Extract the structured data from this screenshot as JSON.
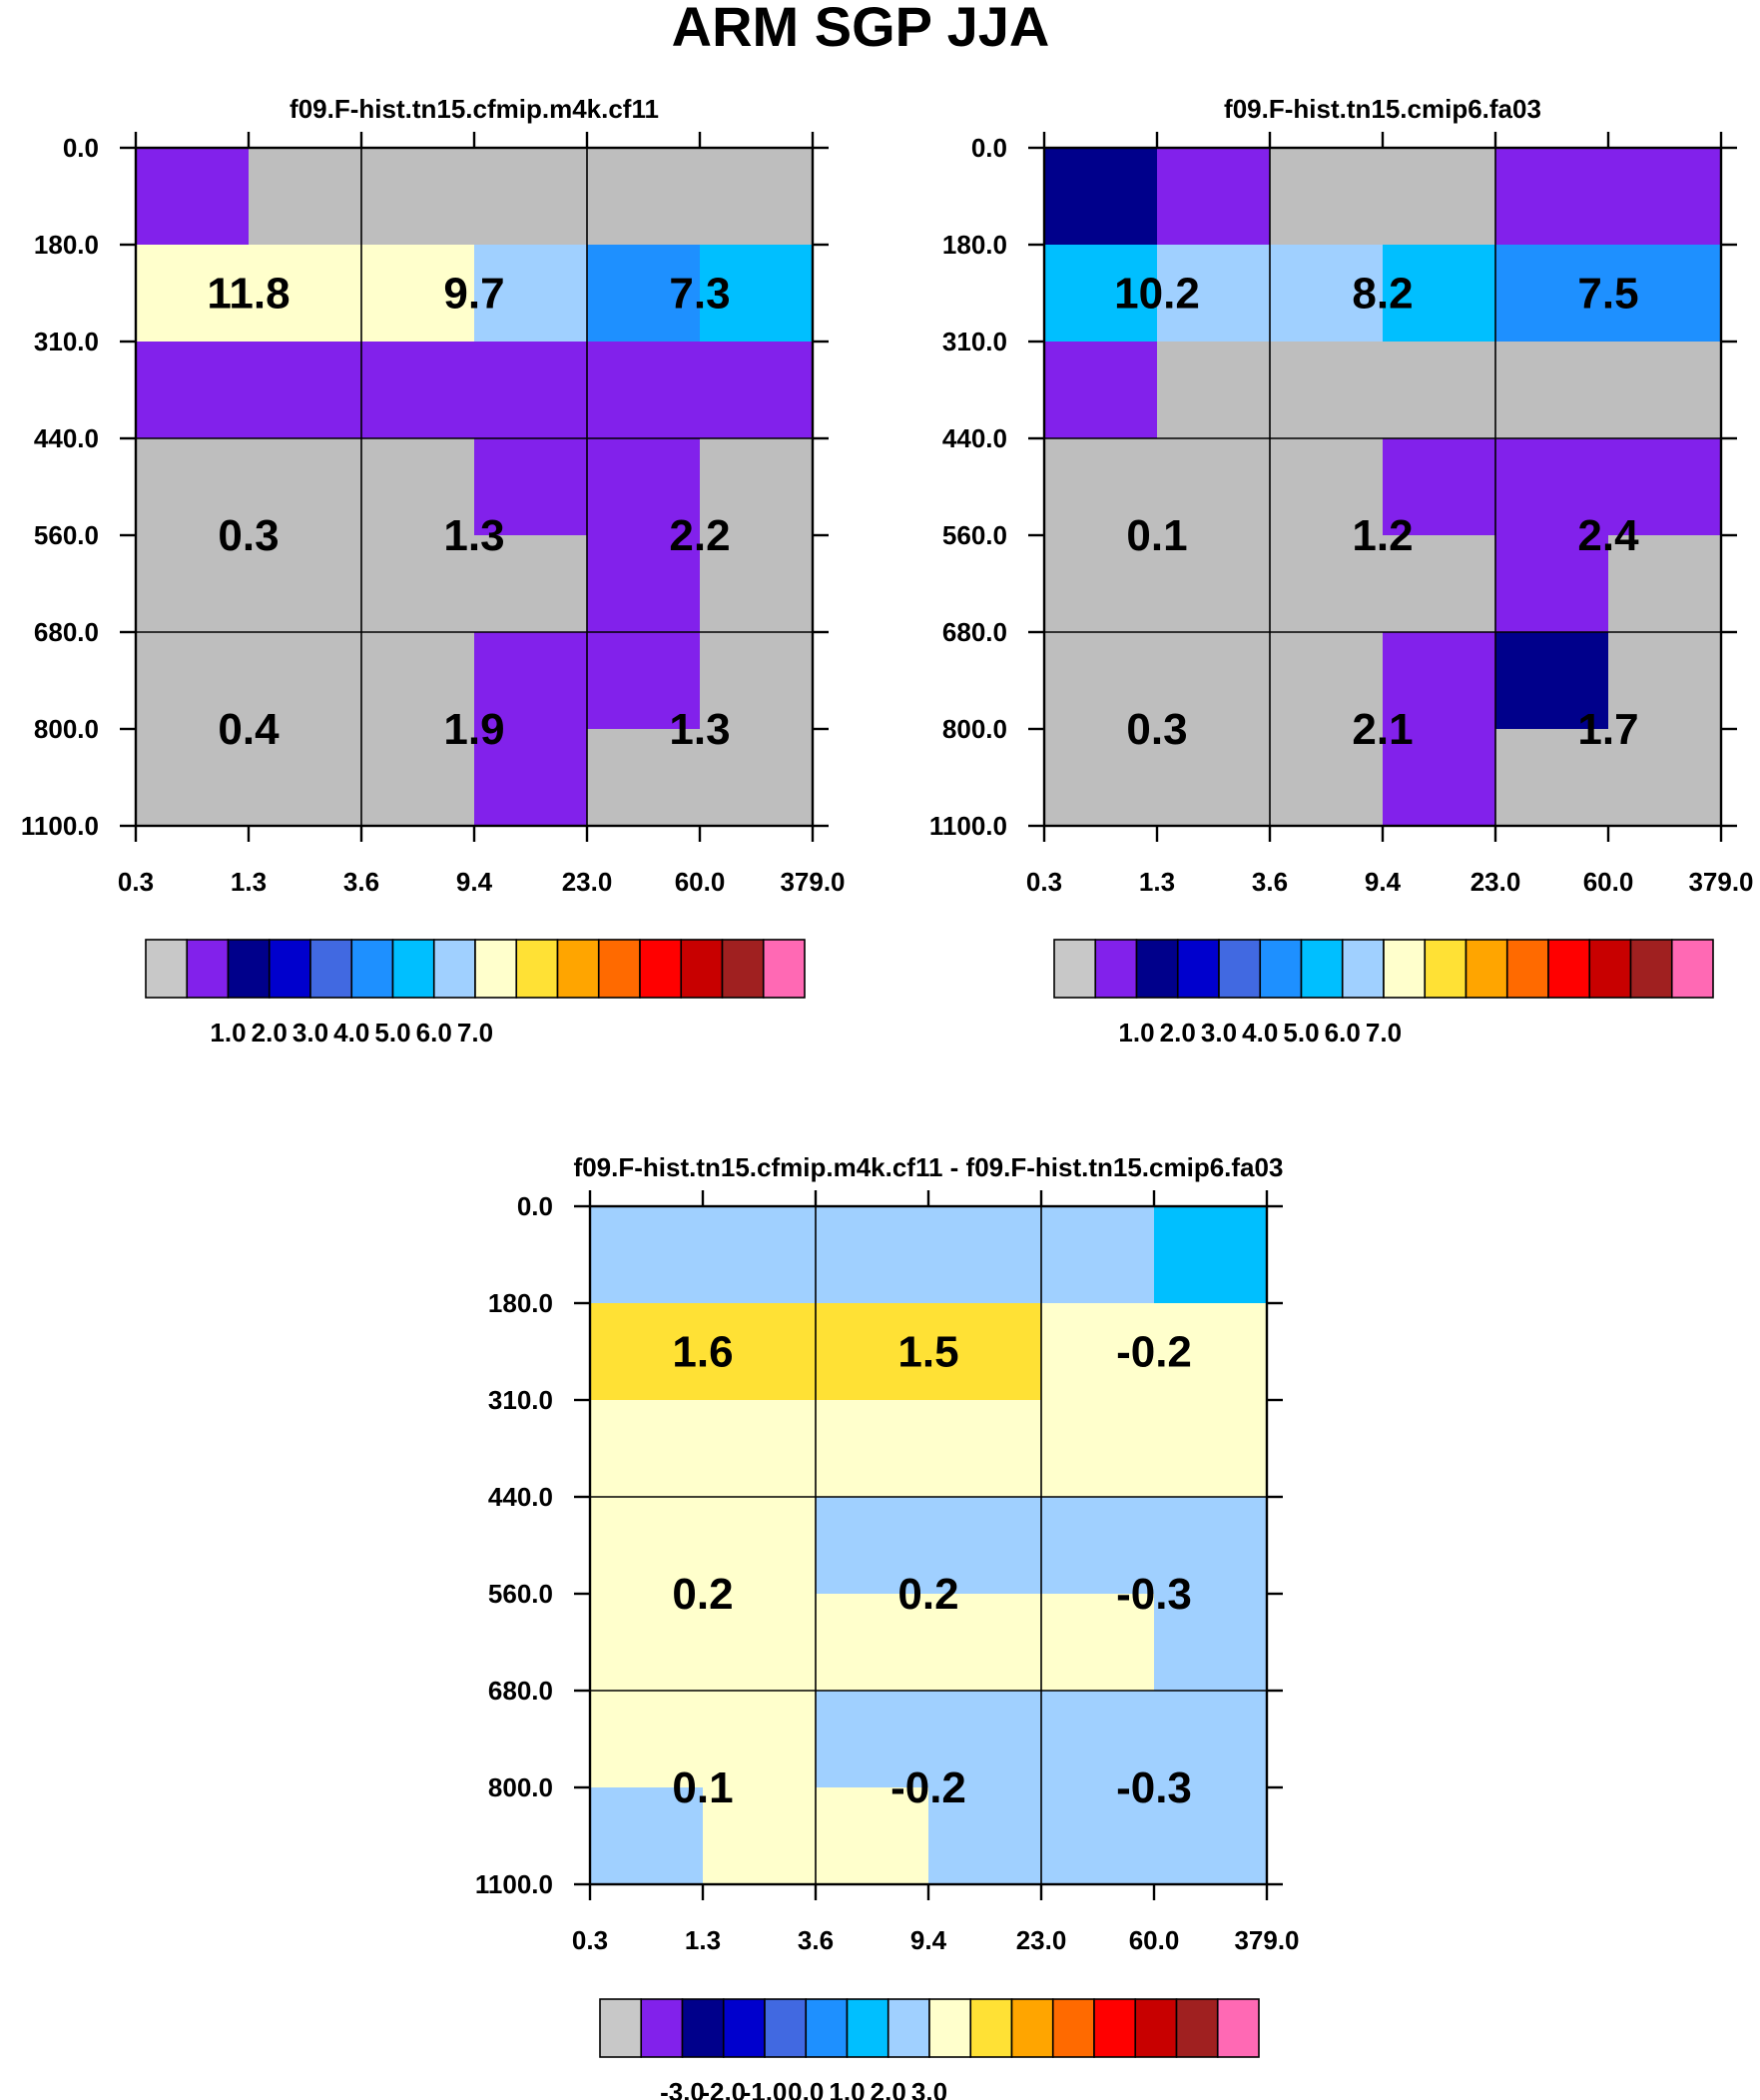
{
  "title": "ARM SGP JJA",
  "chart_data": [
    {
      "type": "heatmap",
      "title": "f09.F-hist.tn15.cfmip.m4k.cf11",
      "x_ticks": [
        "0.3",
        "1.3",
        "3.6",
        "9.4",
        "23.0",
        "60.0",
        "379.0"
      ],
      "y_ticks": [
        "0.0",
        "180.0",
        "310.0",
        "440.0",
        "560.0",
        "680.0",
        "800.0",
        "1100.0"
      ],
      "cell_colors": [
        [
          "#8221EB",
          "#BEBEBE",
          "#BEBEBE",
          "#BEBEBE",
          "#BEBEBE",
          "#BEBEBE"
        ],
        [
          "#FFFFCC",
          "#FFFFCC",
          "#FFFFCC",
          "#A0D0FF",
          "#1E90FF",
          "#00BFFF"
        ],
        [
          "#8221EB",
          "#8221EB",
          "#8221EB",
          "#8221EB",
          "#8221EB",
          "#8221EB"
        ],
        [
          "#BEBEBE",
          "#BEBEBE",
          "#BEBEBE",
          "#8221EB",
          "#8221EB",
          "#BEBEBE"
        ],
        [
          "#BEBEBE",
          "#BEBEBE",
          "#BEBEBE",
          "#BEBEBE",
          "#8221EB",
          "#BEBEBE"
        ],
        [
          "#BEBEBE",
          "#BEBEBE",
          "#BEBEBE",
          "#8221EB",
          "#8221EB",
          "#BEBEBE"
        ],
        [
          "#BEBEBE",
          "#BEBEBE",
          "#BEBEBE",
          "#8221EB",
          "#BEBEBE",
          "#BEBEBE"
        ]
      ],
      "block_values": [
        [
          "11.8",
          "9.7",
          "7.3"
        ],
        [
          "0.3",
          "1.3",
          "2.2"
        ],
        [
          "0.4",
          "1.9",
          "1.3"
        ]
      ],
      "colorbar": {
        "colors": [
          "#C8C8C8",
          "#8221EB",
          "#00008B",
          "#0000CD",
          "#4169E1",
          "#1E90FF",
          "#00BFFF",
          "#A0D0FF",
          "#FFFFCC",
          "#FFE135",
          "#FFA500",
          "#FF6A00",
          "#FF0000",
          "#C80000",
          "#A02020",
          "#FF69B4"
        ],
        "labels": [
          "1.0",
          "2.0",
          "3.0",
          "4.0",
          "5.0",
          "6.0",
          "7.0"
        ]
      }
    },
    {
      "type": "heatmap",
      "title": "f09.F-hist.tn15.cmip6.fa03",
      "x_ticks": [
        "0.3",
        "1.3",
        "3.6",
        "9.4",
        "23.0",
        "60.0",
        "379.0"
      ],
      "y_ticks": [
        "0.0",
        "180.0",
        "310.0",
        "440.0",
        "560.0",
        "680.0",
        "800.0",
        "1100.0"
      ],
      "cell_colors": [
        [
          "#00008B",
          "#8221EB",
          "#BEBEBE",
          "#BEBEBE",
          "#8221EB",
          "#8221EB"
        ],
        [
          "#00BFFF",
          "#A0D0FF",
          "#A0D0FF",
          "#00BFFF",
          "#1E90FF",
          "#1E90FF"
        ],
        [
          "#8221EB",
          "#BEBEBE",
          "#BEBEBE",
          "#BEBEBE",
          "#BEBEBE",
          "#BEBEBE"
        ],
        [
          "#BEBEBE",
          "#BEBEBE",
          "#BEBEBE",
          "#8221EB",
          "#8221EB",
          "#8221EB"
        ],
        [
          "#BEBEBE",
          "#BEBEBE",
          "#BEBEBE",
          "#BEBEBE",
          "#8221EB",
          "#BEBEBE"
        ],
        [
          "#BEBEBE",
          "#BEBEBE",
          "#BEBEBE",
          "#8221EB",
          "#00008B",
          "#BEBEBE"
        ],
        [
          "#BEBEBE",
          "#BEBEBE",
          "#BEBEBE",
          "#8221EB",
          "#BEBEBE",
          "#BEBEBE"
        ]
      ],
      "block_values": [
        [
          "10.2",
          "8.2",
          "7.5"
        ],
        [
          "0.1",
          "1.2",
          "2.4"
        ],
        [
          "0.3",
          "2.1",
          "1.7"
        ]
      ],
      "colorbar": {
        "colors": [
          "#C8C8C8",
          "#8221EB",
          "#00008B",
          "#0000CD",
          "#4169E1",
          "#1E90FF",
          "#00BFFF",
          "#A0D0FF",
          "#FFFFCC",
          "#FFE135",
          "#FFA500",
          "#FF6A00",
          "#FF0000",
          "#C80000",
          "#A02020",
          "#FF69B4"
        ],
        "labels": [
          "1.0",
          "2.0",
          "3.0",
          "4.0",
          "5.0",
          "6.0",
          "7.0"
        ]
      }
    },
    {
      "type": "heatmap",
      "title": "f09.F-hist.tn15.cfmip.m4k.cf11 - f09.F-hist.tn15.cmip6.fa03",
      "x_ticks": [
        "0.3",
        "1.3",
        "3.6",
        "9.4",
        "23.0",
        "60.0",
        "379.0"
      ],
      "y_ticks": [
        "0.0",
        "180.0",
        "310.0",
        "440.0",
        "560.0",
        "680.0",
        "800.0",
        "1100.0"
      ],
      "cell_colors": [
        [
          "#A0D0FF",
          "#A0D0FF",
          "#A0D0FF",
          "#A0D0FF",
          "#A0D0FF",
          "#00BFFF"
        ],
        [
          "#FFE135",
          "#FFE135",
          "#FFE135",
          "#FFE135",
          "#FFFFCC",
          "#FFFFCC"
        ],
        [
          "#FFFFCC",
          "#FFFFCC",
          "#FFFFCC",
          "#FFFFCC",
          "#FFFFCC",
          "#FFFFCC"
        ],
        [
          "#FFFFCC",
          "#FFFFCC",
          "#A0D0FF",
          "#A0D0FF",
          "#A0D0FF",
          "#A0D0FF"
        ],
        [
          "#FFFFCC",
          "#FFFFCC",
          "#FFFFCC",
          "#FFFFCC",
          "#FFFFCC",
          "#A0D0FF"
        ],
        [
          "#FFFFCC",
          "#FFFFCC",
          "#A0D0FF",
          "#A0D0FF",
          "#A0D0FF",
          "#A0D0FF"
        ],
        [
          "#A0D0FF",
          "#FFFFCC",
          "#FFFFCC",
          "#A0D0FF",
          "#A0D0FF",
          "#A0D0FF"
        ]
      ],
      "block_values": [
        [
          "1.6",
          "1.5",
          "-0.2"
        ],
        [
          "0.2",
          "0.2",
          "-0.3"
        ],
        [
          "0.1",
          "-0.2",
          "-0.3"
        ]
      ],
      "colorbar": {
        "colors": [
          "#C8C8C8",
          "#8221EB",
          "#00008B",
          "#0000CD",
          "#4169E1",
          "#1E90FF",
          "#00BFFF",
          "#A0D0FF",
          "#FFFFCC",
          "#FFE135",
          "#FFA500",
          "#FF6A00",
          "#FF0000",
          "#C80000",
          "#A02020",
          "#FF69B4"
        ],
        "labels": [
          "-3.0",
          "-2.0",
          "-1.0",
          "0.0",
          "1.0",
          "2.0",
          "3.0"
        ]
      }
    }
  ]
}
